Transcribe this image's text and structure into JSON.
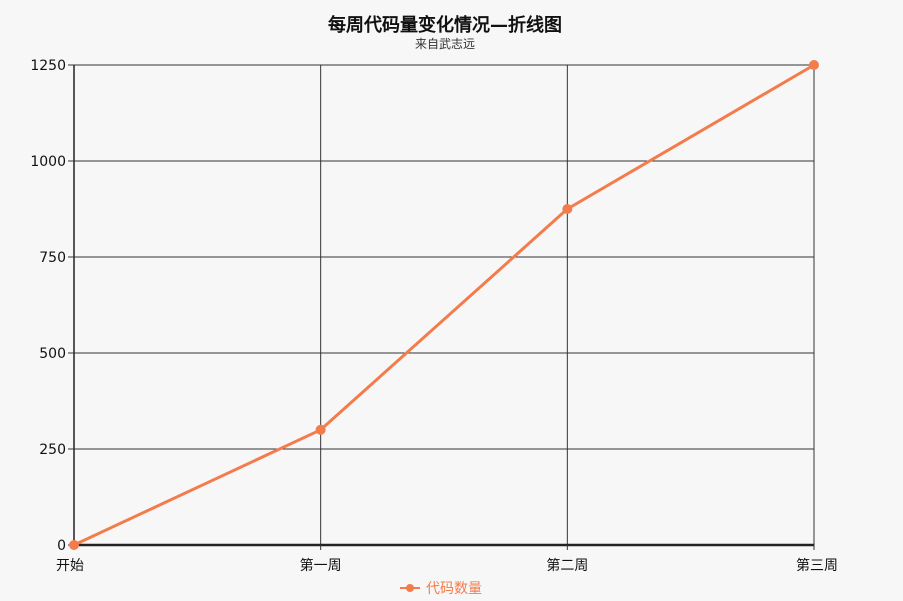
{
  "chart_data": {
    "type": "line",
    "title": "每周代码量变化情况—折线图",
    "subtitle": "来自武志远",
    "categories": [
      "开始",
      "第一周",
      "第二周",
      "第三周"
    ],
    "series": [
      {
        "name": "代码数量",
        "values": [
          0,
          300,
          875,
          1250
        ],
        "color": "#f47c4c"
      }
    ],
    "ylim": [
      0,
      1250
    ],
    "yticks": [
      0,
      250,
      500,
      750,
      1000,
      1250
    ],
    "grid": true,
    "legend": "bottom-center"
  }
}
